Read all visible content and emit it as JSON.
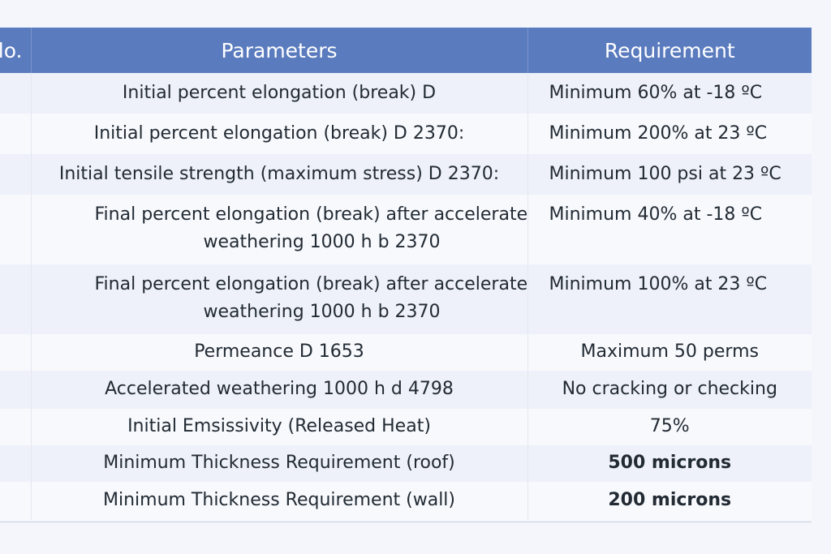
{
  "table": {
    "headers": {
      "no": "lo.",
      "parameters": "Parameters",
      "requirement": "Requirement"
    },
    "rows": [
      {
        "parameter": "Initial percent elongation (break) D",
        "requirement": "Minimum 60% at -18 ºC"
      },
      {
        "parameter": "Initial percent elongation (break) D 2370:",
        "requirement": "Minimum 200% at 23 ºC"
      },
      {
        "parameter": "Initial tensile strength (maximum stress) D 2370:",
        "requirement": "Minimum 100 psi at 23 ºC"
      },
      {
        "parameter_line1": "Final percent elongation (break) after acceleratec",
        "parameter_line2": "weathering 1000 h b 2370",
        "requirement": "Minimum 40% at -18 ºC"
      },
      {
        "parameter_line1": "Final percent elongation (break) after acceleratec",
        "parameter_line2": "weathering 1000 h b 2370",
        "requirement": "Minimum 100% at 23 ºC"
      },
      {
        "parameter": "Permeance D 1653",
        "requirement": "Maximum 50 perms"
      },
      {
        "parameter": "Accelerated weathering 1000 h d 4798",
        "requirement": "No cracking or checking"
      },
      {
        "parameter": "Initial Emsissivity (Released Heat)",
        "requirement": "75%"
      },
      {
        "parameter": "Minimum Thickness Requirement (roof)",
        "requirement": "500 microns"
      },
      {
        "parameter": "Minimum Thickness Requirement (wall)",
        "requirement": "200 microns"
      }
    ]
  }
}
